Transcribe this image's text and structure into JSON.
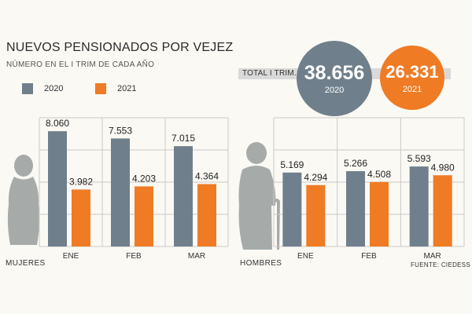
{
  "title": "NUEVOS PENSIONADOS POR VEJEZ",
  "subtitle": "NÚMERO EN EL I TRIM DE CADA AÑO",
  "legend": [
    {
      "label": "2020",
      "color": "#6f808c"
    },
    {
      "label": "2021",
      "color": "#ef7b24"
    }
  ],
  "totals": {
    "label": "TOTAL I TRIM.",
    "items": [
      {
        "value": "38.656",
        "year": "2020"
      },
      {
        "value": "26.331",
        "year": "2021"
      }
    ]
  },
  "source": "FUENTE: CIEDESS",
  "chart_data": [
    {
      "type": "bar",
      "group_label": "MUJERES",
      "categories": [
        "ENE",
        "FEB",
        "MAR"
      ],
      "series": [
        {
          "name": "2020",
          "values": [
            8060,
            7553,
            7015
          ],
          "labels": [
            "8.060",
            "7.553",
            "7.015"
          ]
        },
        {
          "name": "2021",
          "values": [
            3982,
            4203,
            4364
          ],
          "labels": [
            "3.982",
            "4.203",
            "4.364"
          ]
        }
      ],
      "ylim": [
        0,
        9000
      ]
    },
    {
      "type": "bar",
      "group_label": "HOMBRES",
      "categories": [
        "ENE",
        "FEB",
        "MAR"
      ],
      "series": [
        {
          "name": "2020",
          "values": [
            5169,
            5266,
            5593
          ],
          "labels": [
            "5.169",
            "5.266",
            "5.593"
          ]
        },
        {
          "name": "2021",
          "values": [
            4294,
            4508,
            4980
          ],
          "labels": [
            "4.294",
            "4.508",
            "4.980"
          ]
        }
      ],
      "ylim": [
        0,
        9000
      ]
    }
  ],
  "colors": {
    "s2020": "#6f808c",
    "s2021": "#ef7b24",
    "grid": "#c9c9c9",
    "figure": "#a6abaa"
  }
}
